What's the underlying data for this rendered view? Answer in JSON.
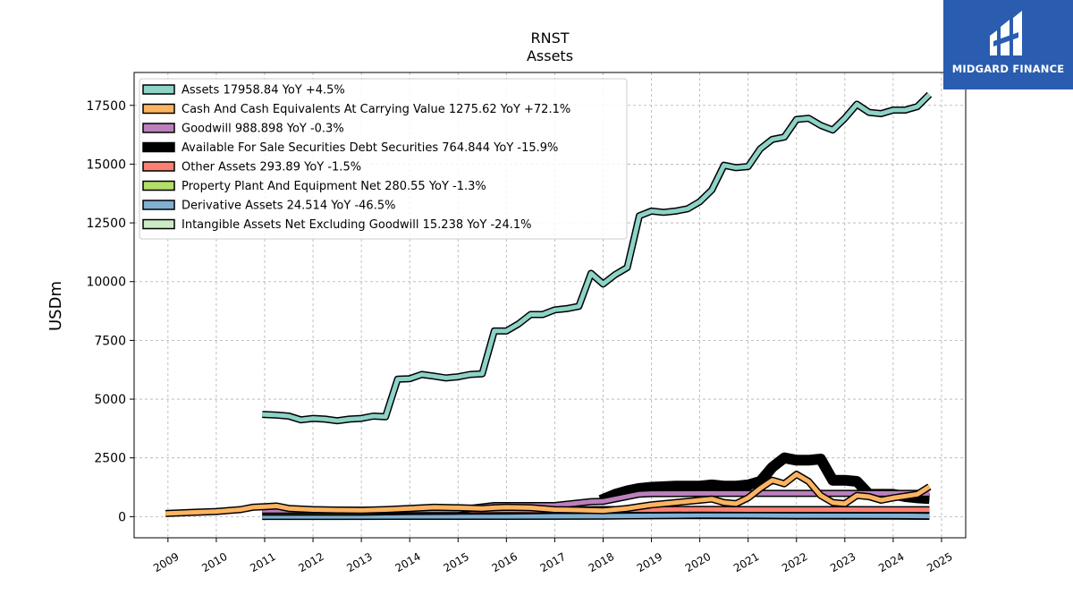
{
  "logo": {
    "text": "MIDGARD FINANCE",
    "bg_color": "#2a5db0"
  },
  "chart_data": {
    "type": "line",
    "title": "RNST",
    "subtitle": "Assets",
    "ylabel": "USDm",
    "xlabel": "",
    "xlim": [
      2008.3,
      2025.5
    ],
    "ylim": [
      -900,
      18900
    ],
    "yticks": [
      0,
      2500,
      5000,
      7500,
      10000,
      12500,
      15000,
      17500
    ],
    "xticks": [
      "2009",
      "2010",
      "2011",
      "2012",
      "2013",
      "2014",
      "2015",
      "2016",
      "2017",
      "2018",
      "2019",
      "2020",
      "2021",
      "2022",
      "2023",
      "2024",
      "2025"
    ],
    "grid": true,
    "legend_position": "top-left",
    "series": [
      {
        "name": "Assets  17958.84 YoY +4.5%",
        "color": "#8dd3c7",
        "width": 5,
        "points": [
          [
            2010.95,
            4350
          ],
          [
            2011.25,
            4320
          ],
          [
            2011.5,
            4280
          ],
          [
            2011.75,
            4120
          ],
          [
            2012.0,
            4180
          ],
          [
            2012.25,
            4150
          ],
          [
            2012.5,
            4080
          ],
          [
            2012.75,
            4150
          ],
          [
            2013.0,
            4180
          ],
          [
            2013.25,
            4280
          ],
          [
            2013.5,
            4250
          ],
          [
            2013.75,
            5850
          ],
          [
            2014.0,
            5870
          ],
          [
            2014.25,
            6050
          ],
          [
            2014.5,
            5980
          ],
          [
            2014.75,
            5900
          ],
          [
            2015.0,
            5950
          ],
          [
            2015.25,
            6050
          ],
          [
            2015.5,
            6080
          ],
          [
            2015.75,
            7900
          ],
          [
            2016.0,
            7900
          ],
          [
            2016.25,
            8200
          ],
          [
            2016.5,
            8600
          ],
          [
            2016.75,
            8600
          ],
          [
            2017.0,
            8800
          ],
          [
            2017.25,
            8850
          ],
          [
            2017.5,
            8950
          ],
          [
            2017.75,
            10350
          ],
          [
            2018.0,
            9900
          ],
          [
            2018.25,
            10300
          ],
          [
            2018.5,
            10600
          ],
          [
            2018.75,
            12800
          ],
          [
            2019.0,
            13000
          ],
          [
            2019.25,
            12950
          ],
          [
            2019.5,
            13000
          ],
          [
            2019.75,
            13100
          ],
          [
            2020.0,
            13400
          ],
          [
            2020.25,
            13900
          ],
          [
            2020.5,
            14950
          ],
          [
            2020.75,
            14850
          ],
          [
            2021.0,
            14900
          ],
          [
            2021.25,
            15650
          ],
          [
            2021.5,
            16050
          ],
          [
            2021.75,
            16150
          ],
          [
            2022.0,
            16900
          ],
          [
            2022.25,
            16950
          ],
          [
            2022.5,
            16650
          ],
          [
            2022.75,
            16450
          ],
          [
            2023.0,
            16950
          ],
          [
            2023.25,
            17550
          ],
          [
            2023.5,
            17200
          ],
          [
            2023.75,
            17150
          ],
          [
            2024.0,
            17300
          ],
          [
            2024.25,
            17300
          ],
          [
            2024.5,
            17450
          ],
          [
            2024.75,
            17958.84
          ]
        ]
      },
      {
        "name": "Cash And Cash Equivalents At Carrying Value  1275.62 YoY +72.1%",
        "color": "#fdb462",
        "width": 5,
        "points": [
          [
            2008.95,
            130
          ],
          [
            2009.5,
            180
          ],
          [
            2010.0,
            220
          ],
          [
            2010.5,
            300
          ],
          [
            2010.75,
            400
          ],
          [
            2011.0,
            420
          ],
          [
            2011.25,
            450
          ],
          [
            2011.5,
            350
          ],
          [
            2012.0,
            300
          ],
          [
            2012.5,
            280
          ],
          [
            2013.0,
            270
          ],
          [
            2013.5,
            300
          ],
          [
            2014.0,
            350
          ],
          [
            2014.5,
            400
          ],
          [
            2015.0,
            380
          ],
          [
            2015.5,
            350
          ],
          [
            2015.75,
            380
          ],
          [
            2016.0,
            400
          ],
          [
            2016.5,
            380
          ],
          [
            2017.0,
            300
          ],
          [
            2017.5,
            280
          ],
          [
            2018.0,
            250
          ],
          [
            2018.5,
            350
          ],
          [
            2019.0,
            500
          ],
          [
            2019.5,
            600
          ],
          [
            2020.0,
            700
          ],
          [
            2020.25,
            750
          ],
          [
            2020.5,
            600
          ],
          [
            2020.75,
            550
          ],
          [
            2021.0,
            800
          ],
          [
            2021.25,
            1200
          ],
          [
            2021.5,
            1550
          ],
          [
            2021.75,
            1400
          ],
          [
            2022.0,
            1800
          ],
          [
            2022.25,
            1500
          ],
          [
            2022.5,
            900
          ],
          [
            2022.75,
            600
          ],
          [
            2023.0,
            550
          ],
          [
            2023.25,
            900
          ],
          [
            2023.5,
            850
          ],
          [
            2023.75,
            700
          ],
          [
            2024.0,
            800
          ],
          [
            2024.5,
            950
          ],
          [
            2024.75,
            1275.62
          ]
        ]
      },
      {
        "name": "Goodwill  988.898 YoY -0.3%",
        "color": "#bc80bd",
        "width": 5,
        "points": [
          [
            2010.95,
            270
          ],
          [
            2012.0,
            270
          ],
          [
            2013.0,
            270
          ],
          [
            2014.0,
            290
          ],
          [
            2015.0,
            290
          ],
          [
            2015.75,
            470
          ],
          [
            2016.5,
            470
          ],
          [
            2017.0,
            470
          ],
          [
            2017.75,
            640
          ],
          [
            2018.0,
            650
          ],
          [
            2018.75,
            960
          ],
          [
            2019.0,
            980
          ],
          [
            2020.0,
            990
          ],
          [
            2021.0,
            990
          ],
          [
            2022.0,
            990
          ],
          [
            2023.0,
            990
          ],
          [
            2024.0,
            990
          ],
          [
            2024.75,
            988.898
          ]
        ]
      },
      {
        "name": "Available For Sale Securities Debt Securities  764.844 YoY -15.9%",
        "color": "#000000",
        "width": 9,
        "points": [
          [
            2017.95,
            700
          ],
          [
            2018.25,
            950
          ],
          [
            2018.5,
            1100
          ],
          [
            2018.75,
            1200
          ],
          [
            2019.0,
            1250
          ],
          [
            2019.5,
            1300
          ],
          [
            2020.0,
            1300
          ],
          [
            2020.25,
            1350
          ],
          [
            2020.5,
            1300
          ],
          [
            2020.75,
            1300
          ],
          [
            2021.0,
            1350
          ],
          [
            2021.25,
            1500
          ],
          [
            2021.5,
            2100
          ],
          [
            2021.75,
            2500
          ],
          [
            2022.0,
            2400
          ],
          [
            2022.25,
            2400
          ],
          [
            2022.5,
            2450
          ],
          [
            2022.75,
            1550
          ],
          [
            2023.0,
            1550
          ],
          [
            2023.25,
            1500
          ],
          [
            2023.5,
            950
          ],
          [
            2023.75,
            950
          ],
          [
            2024.0,
            950
          ],
          [
            2024.25,
            850
          ],
          [
            2024.5,
            800
          ],
          [
            2024.75,
            764.844
          ]
        ]
      },
      {
        "name": "Other Assets  293.89 YoY -1.5%",
        "color": "#fb8072",
        "width": 5,
        "points": [
          [
            2010.95,
            250
          ],
          [
            2012.0,
            250
          ],
          [
            2013.0,
            250
          ],
          [
            2014.0,
            260
          ],
          [
            2015.0,
            280
          ],
          [
            2016.0,
            290
          ],
          [
            2017.0,
            280
          ],
          [
            2018.0,
            300
          ],
          [
            2019.0,
            300
          ],
          [
            2020.0,
            310
          ],
          [
            2021.0,
            300
          ],
          [
            2022.0,
            300
          ],
          [
            2023.0,
            300
          ],
          [
            2024.0,
            295
          ],
          [
            2024.75,
            293.89
          ]
        ]
      },
      {
        "name": "Property Plant And Equipment Net  280.55 YoY -1.3%",
        "color": "#b3de69",
        "width": 5,
        "points": [
          [
            2010.95,
            190
          ],
          [
            2012.0,
            190
          ],
          [
            2013.0,
            190
          ],
          [
            2014.0,
            220
          ],
          [
            2015.0,
            230
          ],
          [
            2016.0,
            240
          ],
          [
            2017.0,
            260
          ],
          [
            2018.0,
            270
          ],
          [
            2019.0,
            280
          ],
          [
            2020.0,
            290
          ],
          [
            2021.0,
            290
          ],
          [
            2022.0,
            285
          ],
          [
            2023.0,
            280
          ],
          [
            2024.0,
            282
          ],
          [
            2024.75,
            280.55
          ]
        ]
      },
      {
        "name": "Derivative Assets  24.514 YoY -46.5%",
        "color": "#80b1d3",
        "width": 5,
        "points": [
          [
            2010.95,
            10
          ],
          [
            2012.0,
            10
          ],
          [
            2014.0,
            12
          ],
          [
            2016.0,
            15
          ],
          [
            2018.0,
            20
          ],
          [
            2020.0,
            60
          ],
          [
            2021.0,
            55
          ],
          [
            2022.0,
            40
          ],
          [
            2023.0,
            45
          ],
          [
            2024.0,
            35
          ],
          [
            2024.75,
            24.514
          ]
        ]
      },
      {
        "name": "Intangible Assets Net Excluding Goodwill  15.238 YoY -24.1%",
        "color": "#ccebc5",
        "width": 5,
        "points": [
          [
            2010.95,
            20
          ],
          [
            2012.0,
            18
          ],
          [
            2014.0,
            15
          ],
          [
            2016.0,
            20
          ],
          [
            2018.0,
            30
          ],
          [
            2019.0,
            45
          ],
          [
            2020.0,
            40
          ],
          [
            2021.0,
            35
          ],
          [
            2022.0,
            30
          ],
          [
            2023.0,
            25
          ],
          [
            2024.0,
            20
          ],
          [
            2024.75,
            15.238
          ]
        ]
      }
    ]
  }
}
